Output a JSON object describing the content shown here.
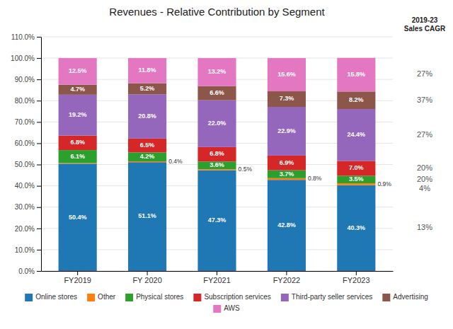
{
  "chart_data": {
    "type": "bar",
    "stacked": true,
    "title": "Revenues - Relative Contribution by Segment",
    "categories": [
      "FY2019",
      "FY 2020",
      "FY2021",
      "FY2022",
      "FY2023"
    ],
    "series": [
      {
        "name": "Online stores",
        "values": [
          50.4,
          51.1,
          47.3,
          42.8,
          40.3
        ],
        "value_labels": [
          "50.4%",
          "51.1%",
          "47.3%",
          "42.8%",
          "40.3%"
        ],
        "cagr": "13%"
      },
      {
        "name": "Other",
        "values": [
          0.3,
          0.4,
          0.5,
          0.8,
          0.9
        ],
        "value_labels": [
          null,
          "0.4%",
          "0.5%",
          "0.8%",
          "0.9%"
        ],
        "cagr": "4%"
      },
      {
        "name": "Physical stores",
        "values": [
          6.1,
          4.2,
          3.6,
          3.7,
          3.5
        ],
        "value_labels": [
          "6.1%",
          "4.2%",
          "3.6%",
          "3.7%",
          "3.5%"
        ],
        "cagr": "20%"
      },
      {
        "name": "Subscription services",
        "values": [
          6.8,
          6.5,
          6.8,
          6.9,
          7.0
        ],
        "value_labels": [
          "6.8%",
          "6.5%",
          "6.8%",
          "6.9%",
          "7.0%"
        ],
        "cagr": "20%"
      },
      {
        "name": "Third-party seller services",
        "values": [
          19.2,
          20.8,
          22.0,
          22.9,
          24.4
        ],
        "value_labels": [
          "19.2%",
          "20.8%",
          "22.0%",
          "22.9%",
          "24.4%"
        ],
        "cagr": "27%"
      },
      {
        "name": "Advertising",
        "values": [
          4.7,
          5.2,
          6.6,
          7.3,
          8.2
        ],
        "value_labels": [
          "4.7%",
          "5.2%",
          "6.6%",
          "7.3%",
          "8.2%"
        ],
        "cagr": "37%"
      },
      {
        "name": "AWS",
        "values": [
          12.5,
          11.8,
          13.2,
          15.6,
          15.8
        ],
        "value_labels": [
          "12.5%",
          "11.8%",
          "13.2%",
          "15.6%",
          "15.8%"
        ],
        "cagr": "27%"
      }
    ],
    "cagr_title": [
      "2019-23",
      "Sales CAGR"
    ],
    "ylim": [
      0,
      110
    ],
    "yticks": [
      {
        "value": 0,
        "label": "0.0%"
      },
      {
        "value": 10,
        "label": "10.0%"
      },
      {
        "value": 20,
        "label": "20.0%"
      },
      {
        "value": 30,
        "label": "30.0%"
      },
      {
        "value": 40,
        "label": "40.0%"
      },
      {
        "value": 50,
        "label": "50.0%"
      },
      {
        "value": 60,
        "label": "60.0%"
      },
      {
        "value": 70,
        "label": "70.0%"
      },
      {
        "value": 80,
        "label": "80.0%"
      },
      {
        "value": 90,
        "label": "90.0%"
      },
      {
        "value": 100,
        "label": "100.0%"
      },
      {
        "value": 110,
        "label": "110.0%"
      }
    ],
    "grid": true,
    "data_labels": true,
    "legend": "bottom"
  }
}
